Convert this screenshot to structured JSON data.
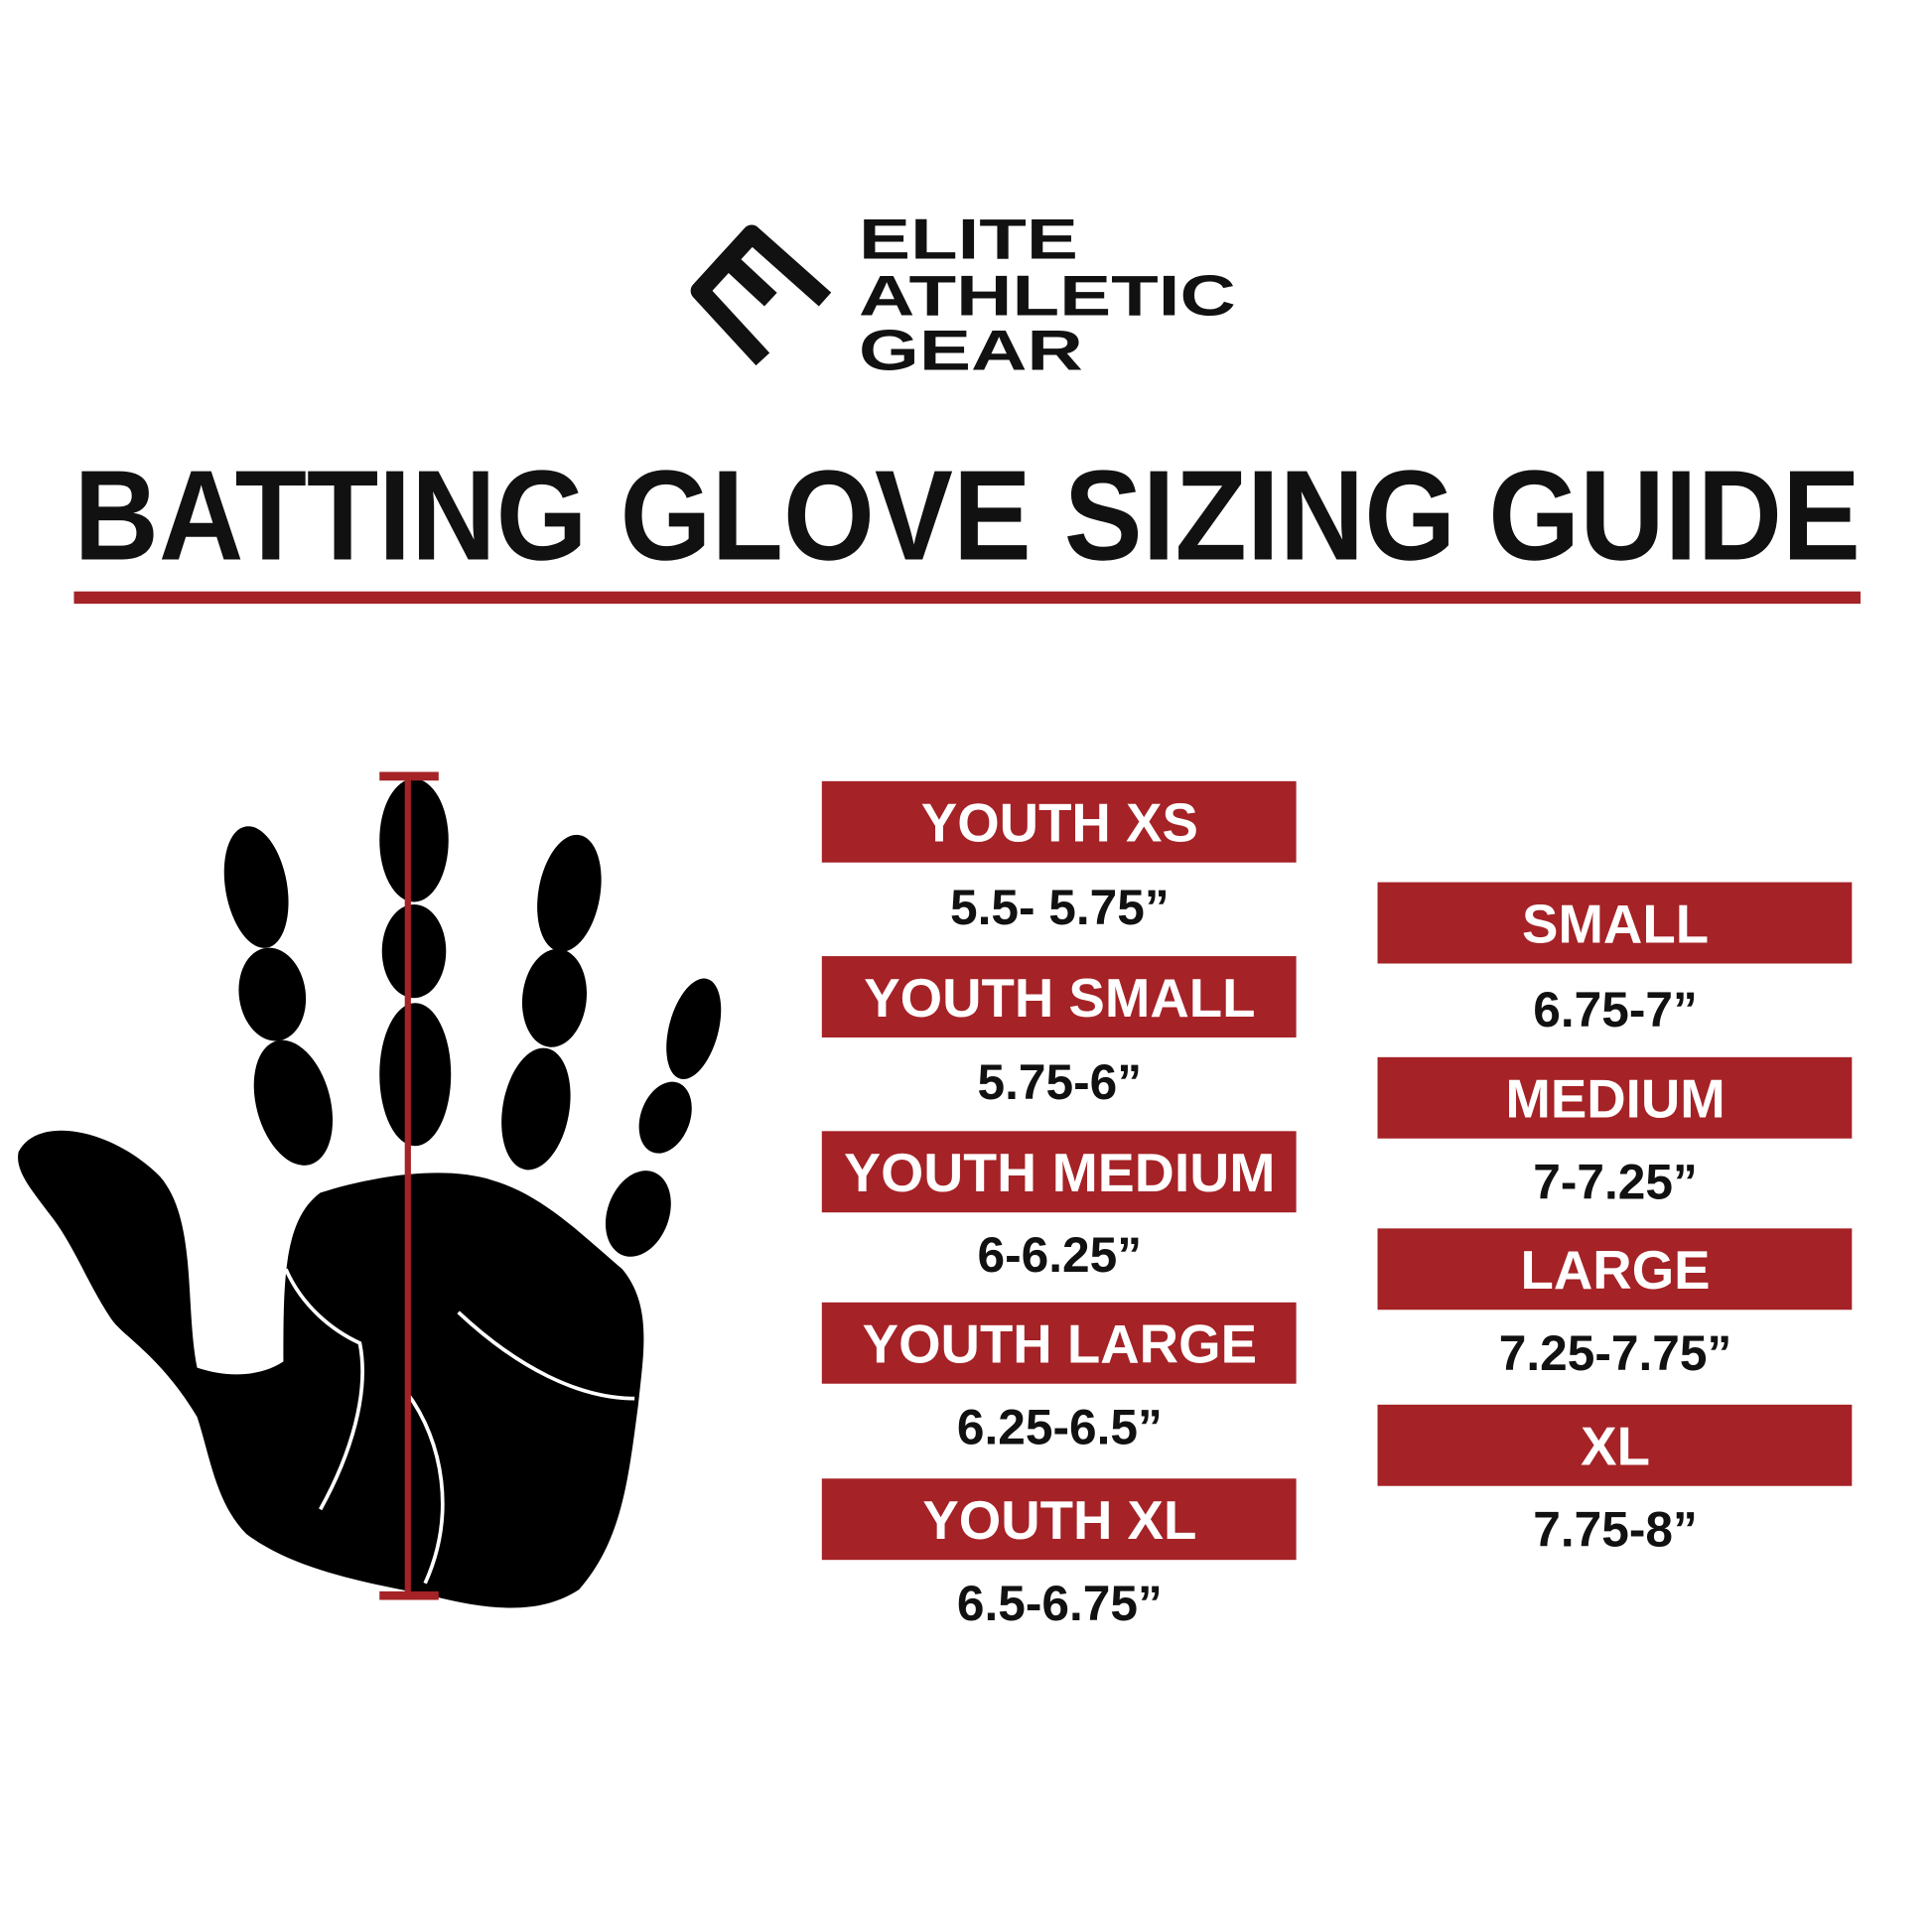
{
  "brand": {
    "logo_lines": [
      "ELITE",
      "ATHLETIC",
      "GEAR"
    ],
    "logo_icon": "stylized-e-chevron-icon"
  },
  "title": "BATTING GLOVE SIZING GUIDE",
  "colors": {
    "accent_red": "#a52226",
    "text_black": "#111111",
    "background": "#ffffff"
  },
  "illustration": {
    "icon": "hand-silhouette-icon",
    "measure_indicator": "hand-length-measure-bar"
  },
  "youth_sizes": [
    {
      "label": "YOUTH XS",
      "range": "5.5- 5.75”"
    },
    {
      "label": "YOUTH SMALL",
      "range": "5.75-6”"
    },
    {
      "label": "YOUTH MEDIUM",
      "range": "6-6.25”"
    },
    {
      "label": "YOUTH LARGE",
      "range": "6.25-6.5”"
    },
    {
      "label": "YOUTH XL",
      "range": "6.5-6.75”"
    }
  ],
  "adult_sizes": [
    {
      "label": "SMALL",
      "range": "6.75-7”"
    },
    {
      "label": "MEDIUM",
      "range": "7-7.25”"
    },
    {
      "label": "LARGE",
      "range": "7.25-7.75”"
    },
    {
      "label": "XL",
      "range": "7.75-8”"
    }
  ]
}
